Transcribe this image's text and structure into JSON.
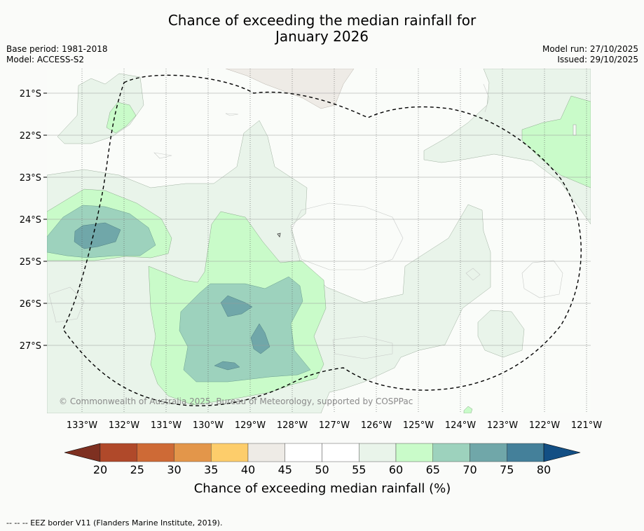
{
  "title_line1": "Chance of exceeding the median rainfall for",
  "title_line2": "January 2026",
  "base_period": "Base period: 1981-2018",
  "model": "Model: ACCESS-S2",
  "model_run": "Model run: 27/10/2025",
  "issued": "Issued: 29/10/2025",
  "copyright": "© Commonwealth of Australia 2025, Bureau of Meteorology, supported by COSPPac",
  "lat_labels": [
    "21°S",
    "22°S",
    "23°S",
    "24°S",
    "25°S",
    "26°S",
    "27°S"
  ],
  "lon_labels": [
    "133°W",
    "132°W",
    "131°W",
    "130°W",
    "129°W",
    "128°W",
    "127°W",
    "126°W",
    "125°W",
    "124°W",
    "123°W",
    "122°W",
    "121°W"
  ],
  "colorbar": {
    "ticks": [
      "20",
      "25",
      "30",
      "35",
      "40",
      "45",
      "50",
      "55",
      "60",
      "65",
      "70",
      "75",
      "80"
    ],
    "colors": [
      "#b0492a",
      "#ce6a36",
      "#e3964a",
      "#fdcd6b",
      "#eeebe6",
      "#ffffff",
      "#ffffff",
      "#e9f4ea",
      "#c9fbc9",
      "#9dd2bd",
      "#70a7a9",
      "#44809a"
    ],
    "under_color": "#7e3021",
    "over_color": "#134f84",
    "label": "Chance of exceeding median rainfall (%)"
  },
  "legend_caption": "--  --  -- EEZ border V11 (Flanders Marine Institute, 2019)."
}
